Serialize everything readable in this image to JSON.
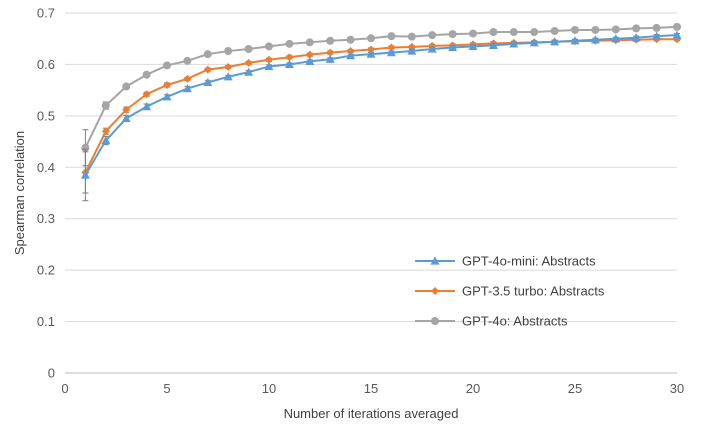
{
  "chart_data": {
    "type": "line",
    "xlabel": "Number of iterations averaged",
    "ylabel": "Spearman correlation",
    "xlim": [
      0,
      30
    ],
    "ylim": [
      0,
      0.7
    ],
    "x_ticks": [
      "0",
      "5",
      "10",
      "15",
      "20",
      "25",
      "30"
    ],
    "y_ticks": [
      "0",
      "0.1",
      "0.2",
      "0.3",
      "0.4",
      "0.5",
      "0.6",
      "0.7"
    ],
    "grid": "horizontal",
    "legend_position": "bottom-right",
    "x": [
      1,
      2,
      3,
      4,
      5,
      6,
      7,
      8,
      9,
      10,
      11,
      12,
      13,
      14,
      15,
      16,
      17,
      18,
      19,
      20,
      21,
      22,
      23,
      24,
      25,
      26,
      27,
      28,
      29,
      30
    ],
    "series": [
      {
        "name": "GPT-4o-mini: Abstracts",
        "color": "#5b9bd5",
        "marker": "triangle",
        "values": [
          0.385,
          0.452,
          0.495,
          0.518,
          0.537,
          0.553,
          0.565,
          0.576,
          0.585,
          0.596,
          0.6,
          0.606,
          0.61,
          0.617,
          0.62,
          0.623,
          0.626,
          0.63,
          0.633,
          0.635,
          0.637,
          0.64,
          0.642,
          0.644,
          0.646,
          0.648,
          0.65,
          0.652,
          0.655,
          0.657
        ],
        "error_bars": [
          0.05,
          0.008,
          0.006,
          0.005,
          0.004,
          0.004,
          0.004,
          0.003,
          0.003,
          0.003,
          0.003,
          0.003,
          0.003,
          0.003,
          0.003,
          0.003,
          0.003,
          0.003,
          0.003,
          0.003,
          0.003,
          0.003,
          0.003,
          0.003,
          0.003,
          0.003,
          0.003,
          0.003,
          0.003,
          0.003
        ]
      },
      {
        "name": "GPT-3.5 turbo: Abstracts",
        "color": "#ed7d31",
        "marker": "diamond",
        "values": [
          0.39,
          0.47,
          0.512,
          0.542,
          0.56,
          0.572,
          0.59,
          0.595,
          0.603,
          0.609,
          0.614,
          0.619,
          0.623,
          0.626,
          0.629,
          0.633,
          0.634,
          0.636,
          0.637,
          0.639,
          0.641,
          0.642,
          0.643,
          0.644,
          0.645,
          0.646,
          0.647,
          0.648,
          0.649,
          0.649
        ],
        "error_bars": [
          0.04,
          0.006,
          0.005,
          0.004,
          0.004,
          0.003,
          0.003,
          0.003,
          0.003,
          0.003,
          0.003,
          0.003,
          0.003,
          0.003,
          0.003,
          0.003,
          0.003,
          0.003,
          0.003,
          0.003,
          0.003,
          0.003,
          0.003,
          0.003,
          0.003,
          0.003,
          0.003,
          0.003,
          0.003,
          0.003
        ]
      },
      {
        "name": "GPT-4o: Abstracts",
        "color": "#a5a5a5",
        "marker": "circle",
        "values": [
          0.438,
          0.52,
          0.557,
          0.58,
          0.598,
          0.607,
          0.62,
          0.626,
          0.63,
          0.635,
          0.64,
          0.643,
          0.646,
          0.648,
          0.651,
          0.655,
          0.654,
          0.657,
          0.659,
          0.66,
          0.663,
          0.663,
          0.663,
          0.665,
          0.667,
          0.667,
          0.668,
          0.67,
          0.671,
          0.673
        ],
        "error_bars": [
          0.035,
          0.007,
          0.005,
          0.004,
          0.003,
          0.003,
          0.003,
          0.003,
          0.003,
          0.003,
          0.003,
          0.003,
          0.003,
          0.003,
          0.003,
          0.003,
          0.003,
          0.003,
          0.003,
          0.003,
          0.003,
          0.003,
          0.003,
          0.003,
          0.003,
          0.003,
          0.003,
          0.003,
          0.003,
          0.003
        ]
      }
    ]
  }
}
